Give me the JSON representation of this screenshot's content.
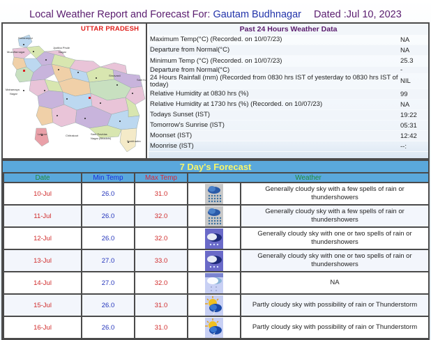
{
  "header": {
    "title_prefix": "Local Weather Report and Forecast For:",
    "location": "Gautam Budhnagar",
    "dated": "Dated :Jul 10, 2023"
  },
  "map": {
    "state_label": "UTTAR PRADESH",
    "district_labels": [
      "Saharanpur",
      "Muzaffarnagar",
      "Meerut",
      "Ghaziabad",
      "Gautam Budh Nagar",
      "Jyotiba Phule Nagar",
      "Rampur",
      "Bareilly",
      "Pilibhit",
      "Kheri",
      "Shravasti",
      "Sant Kabir Nagar",
      "Mahamaya Nagar",
      "Agra",
      "Lucknow",
      "Chitrakoot",
      "Sant Ravidas Nagar (Bhadohi)",
      "Lalitpur",
      "Sonbhadra"
    ],
    "highlight_marker_color": "#e02020"
  },
  "past24": {
    "title": "Past 24 Hours Weather Data",
    "rows": [
      {
        "label": "Maximum Temp(°C) (Recorded. on 10/07/23)",
        "value": "NA"
      },
      {
        "label": "Departure from Normal(°C)",
        "value": "NA"
      },
      {
        "label": "Minimum Temp (°C) (Recorded. on 10/07/23)",
        "value": "25.3"
      },
      {
        "label": "Departure from Normal(°C)",
        "value": "-"
      },
      {
        "label": "24 Hours Rainfall (mm) (Recorded from 0830 hrs IST of yesterday to 0830 hrs IST of today)",
        "value": "NIL"
      },
      {
        "label": "Relative Humidity at 0830 hrs (%)",
        "value": "99"
      },
      {
        "label": "Relative Humidity at 1730 hrs (%) (Recorded. on 10/07/23)",
        "value": "NA"
      },
      {
        "label": "Todays Sunset (IST)",
        "value": "19:22"
      },
      {
        "label": "Tomorrow's Sunrise (IST)",
        "value": "05:31"
      },
      {
        "label": "Moonset (IST)",
        "value": "12:42"
      },
      {
        "label": "Moonrise (IST)",
        "value": "--:"
      }
    ]
  },
  "forecast": {
    "title": "7 Day's Forecast",
    "columns": {
      "date": "Date",
      "min": "Min Temp",
      "max": "Max Temp",
      "weather": "Weather"
    },
    "colors": {
      "title": "#f5f56a",
      "header_bg": "#5aa8dc",
      "date": "#d02a2a",
      "min": "#2233bb",
      "max": "#d02a2a",
      "header_green": "#1f8a3a"
    },
    "days": [
      {
        "date": "10-Jul",
        "min": "26.0",
        "max": "31.0",
        "icon": "heavy-rain-icon",
        "weather": "Generally cloudy sky with a few spells of rain or thundershowers"
      },
      {
        "date": "11-Jul",
        "min": "26.0",
        "max": "32.0",
        "icon": "heavy-rain-icon",
        "weather": "Generally cloudy sky with a few spells of rain or thundershowers"
      },
      {
        "date": "12-Jul",
        "min": "26.0",
        "max": "32.0",
        "icon": "rain-cloud-icon",
        "weather": "Generally cloudy sky with one or two spells of rain or thundershowers"
      },
      {
        "date": "13-Jul",
        "min": "27.0",
        "max": "33.0",
        "icon": "rain-cloud-icon",
        "weather": "Generally cloudy sky with one or two spells of rain or thundershowers"
      },
      {
        "date": "14-Jul",
        "min": "27.0",
        "max": "32.0",
        "icon": "light-rain-icon",
        "weather": "NA"
      },
      {
        "date": "15-Jul",
        "min": "26.0",
        "max": "31.0",
        "icon": "partly-cloudy-thunder-icon",
        "weather": "Partly cloudy sky with possibility of rain or Thunderstorm"
      },
      {
        "date": "16-Jul",
        "min": "26.0",
        "max": "31.0",
        "icon": "partly-cloudy-thunder-icon",
        "weather": "Partly cloudy sky with possibility of rain or Thunderstorm"
      }
    ]
  }
}
